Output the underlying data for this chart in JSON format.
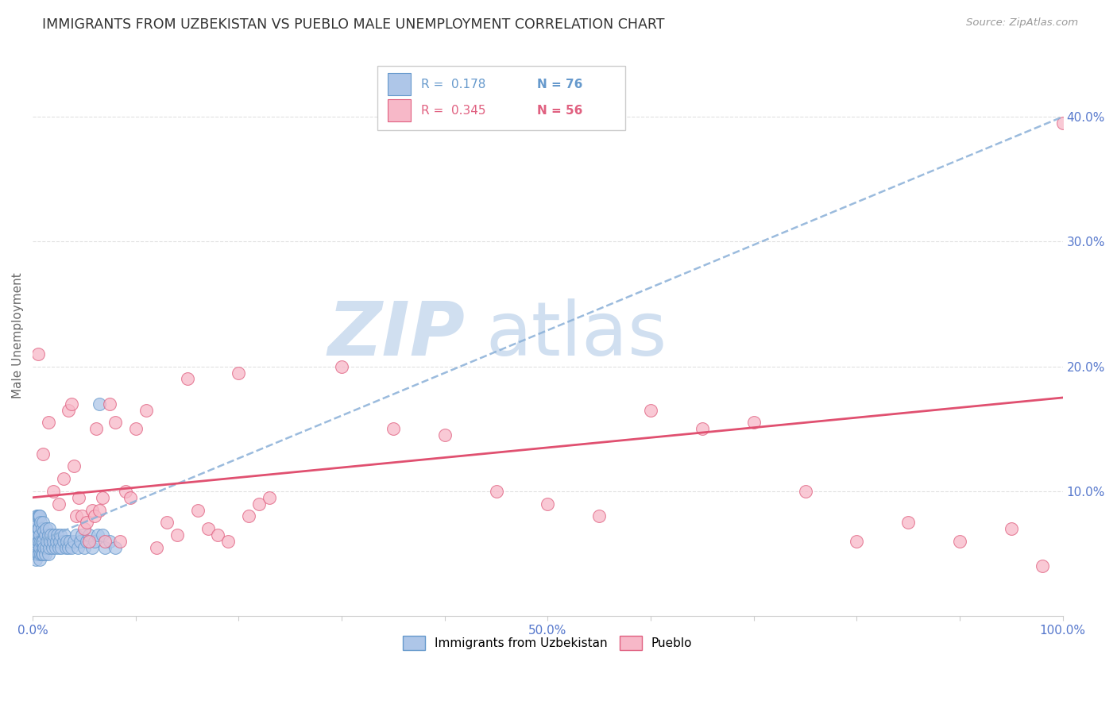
{
  "title": "IMMIGRANTS FROM UZBEKISTAN VS PUEBLO MALE UNEMPLOYMENT CORRELATION CHART",
  "source": "Source: ZipAtlas.com",
  "ylabel": "Male Unemployment",
  "watermark_line1": "ZIP",
  "watermark_line2": "atlas",
  "xlim": [
    0.0,
    1.0
  ],
  "ylim": [
    0.0,
    0.45
  ],
  "xtick_positions": [
    0.0,
    0.5,
    1.0
  ],
  "xtick_labels": [
    "0.0%",
    "50.0%",
    "100.0%"
  ],
  "ytick_positions": [
    0.1,
    0.2,
    0.3,
    0.4
  ],
  "ytick_labels": [
    "10.0%",
    "20.0%",
    "30.0%",
    "40.0%"
  ],
  "color_uzbek_fill": "#aec6e8",
  "color_uzbek_edge": "#6699cc",
  "color_pueblo_fill": "#f7b8c8",
  "color_pueblo_edge": "#e06080",
  "color_line_uzbek": "#8ab0d8",
  "color_line_pueblo": "#e05070",
  "color_axis_ticks": "#5577cc",
  "color_title": "#333333",
  "color_watermark": "#d0dff0",
  "color_grid": "#e0e0e0",
  "uzbek_R": 0.178,
  "uzbek_N": 76,
  "pueblo_R": 0.345,
  "pueblo_N": 56,
  "scatter_uzbek_x": [
    0.001,
    0.002,
    0.002,
    0.003,
    0.003,
    0.003,
    0.004,
    0.004,
    0.004,
    0.005,
    0.005,
    0.005,
    0.005,
    0.006,
    0.006,
    0.006,
    0.006,
    0.007,
    0.007,
    0.007,
    0.007,
    0.008,
    0.008,
    0.008,
    0.009,
    0.009,
    0.009,
    0.01,
    0.01,
    0.01,
    0.011,
    0.011,
    0.012,
    0.012,
    0.013,
    0.013,
    0.014,
    0.015,
    0.015,
    0.016,
    0.016,
    0.017,
    0.018,
    0.019,
    0.02,
    0.021,
    0.022,
    0.023,
    0.024,
    0.025,
    0.026,
    0.027,
    0.028,
    0.03,
    0.031,
    0.032,
    0.033,
    0.035,
    0.036,
    0.038,
    0.04,
    0.042,
    0.044,
    0.046,
    0.048,
    0.05,
    0.052,
    0.055,
    0.058,
    0.06,
    0.063,
    0.065,
    0.068,
    0.07,
    0.075,
    0.08
  ],
  "scatter_uzbek_y": [
    0.06,
    0.055,
    0.07,
    0.045,
    0.06,
    0.075,
    0.05,
    0.065,
    0.08,
    0.05,
    0.06,
    0.07,
    0.08,
    0.05,
    0.06,
    0.07,
    0.08,
    0.045,
    0.055,
    0.065,
    0.08,
    0.05,
    0.06,
    0.075,
    0.05,
    0.06,
    0.07,
    0.05,
    0.06,
    0.075,
    0.055,
    0.068,
    0.05,
    0.065,
    0.055,
    0.07,
    0.06,
    0.05,
    0.065,
    0.055,
    0.07,
    0.06,
    0.065,
    0.055,
    0.06,
    0.065,
    0.055,
    0.06,
    0.065,
    0.055,
    0.06,
    0.065,
    0.055,
    0.06,
    0.065,
    0.055,
    0.06,
    0.055,
    0.06,
    0.055,
    0.06,
    0.065,
    0.055,
    0.06,
    0.065,
    0.055,
    0.06,
    0.065,
    0.055,
    0.06,
    0.065,
    0.17,
    0.065,
    0.055,
    0.06,
    0.055
  ],
  "scatter_pueblo_x": [
    0.005,
    0.01,
    0.015,
    0.02,
    0.025,
    0.03,
    0.035,
    0.038,
    0.04,
    0.042,
    0.045,
    0.048,
    0.05,
    0.052,
    0.055,
    0.058,
    0.06,
    0.062,
    0.065,
    0.068,
    0.07,
    0.075,
    0.08,
    0.085,
    0.09,
    0.095,
    0.1,
    0.11,
    0.12,
    0.13,
    0.14,
    0.15,
    0.16,
    0.17,
    0.18,
    0.19,
    0.2,
    0.21,
    0.22,
    0.23,
    0.3,
    0.35,
    0.4,
    0.45,
    0.5,
    0.55,
    0.6,
    0.65,
    0.7,
    0.75,
    0.8,
    0.85,
    0.9,
    0.95,
    0.98,
    1.0
  ],
  "scatter_pueblo_y": [
    0.21,
    0.13,
    0.155,
    0.1,
    0.09,
    0.11,
    0.165,
    0.17,
    0.12,
    0.08,
    0.095,
    0.08,
    0.07,
    0.075,
    0.06,
    0.085,
    0.08,
    0.15,
    0.085,
    0.095,
    0.06,
    0.17,
    0.155,
    0.06,
    0.1,
    0.095,
    0.15,
    0.165,
    0.055,
    0.075,
    0.065,
    0.19,
    0.085,
    0.07,
    0.065,
    0.06,
    0.195,
    0.08,
    0.09,
    0.095,
    0.2,
    0.15,
    0.145,
    0.1,
    0.09,
    0.08,
    0.165,
    0.15,
    0.155,
    0.1,
    0.06,
    0.075,
    0.06,
    0.07,
    0.04,
    0.395
  ]
}
